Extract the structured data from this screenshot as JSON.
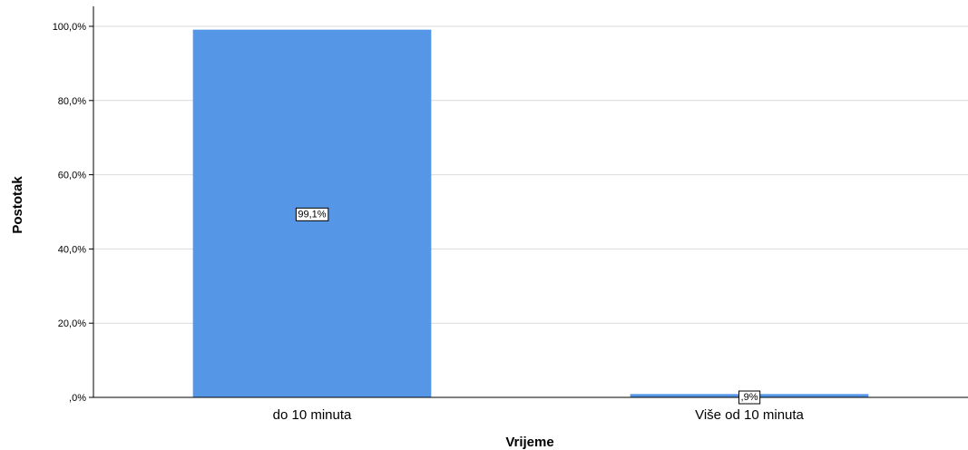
{
  "chart_data": {
    "type": "bar",
    "categories": [
      "do 10 minuta",
      "Više od 10 minuta"
    ],
    "values": [
      99.1,
      0.9
    ],
    "data_labels": [
      "99,1%",
      ",9%"
    ],
    "xlabel": "Vrijeme",
    "ylabel": "Postotak",
    "ylim": [
      0,
      100
    ],
    "y_ticks": [
      {
        "value": 0,
        "label": ",0%"
      },
      {
        "value": 20,
        "label": "20,0%"
      },
      {
        "value": 40,
        "label": "40,0%"
      },
      {
        "value": 60,
        "label": "60,0%"
      },
      {
        "value": 80,
        "label": "80,0%"
      },
      {
        "value": 100,
        "label": "100,0%"
      }
    ],
    "grid": true,
    "colors": {
      "bar": "#5596e6",
      "grid": "#d9d9d9",
      "axis": "#000000"
    }
  }
}
